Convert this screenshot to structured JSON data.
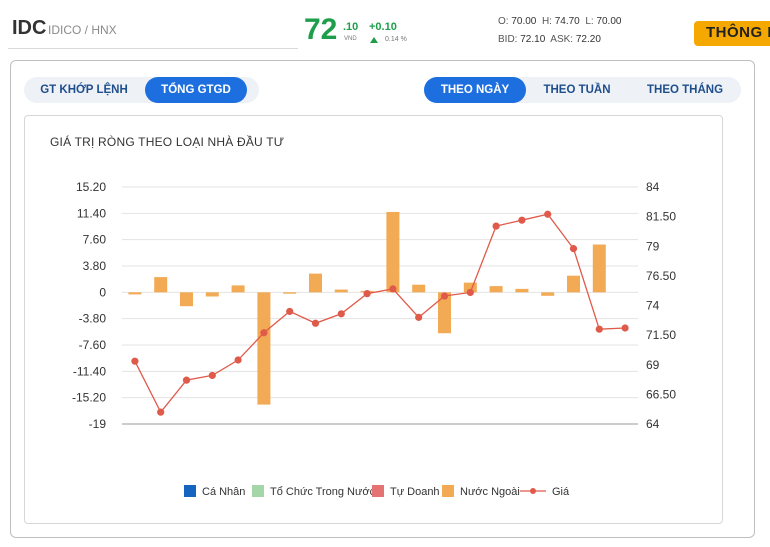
{
  "header": {
    "ticker": "IDC",
    "company": "IDICO / HNX",
    "price_int": "72",
    "price_dec": ".10",
    "price_unit": "VND",
    "change": "+0.10",
    "change_pct": "0.14 %",
    "open_label": "O:",
    "open": "70.00",
    "high_label": "H:",
    "high": "74.70",
    "low_label": "L:",
    "low": "70.00",
    "bid_label": "BID:",
    "bid": "72.10",
    "ask_label": "ASK:",
    "ask": "72.20",
    "info_button": "THÔNG BÁO",
    "colors": {
      "up": "#1e9e4a",
      "info": "#f5a800"
    }
  },
  "tabs_left": [
    {
      "label": "GT KHỚP LỆNH",
      "active": false
    },
    {
      "label": "TỔNG GTGD",
      "active": true
    }
  ],
  "tabs_right": [
    {
      "label": "THEO NGÀY",
      "active": true
    },
    {
      "label": "THEO TUẦN",
      "active": false
    },
    {
      "label": "THEO THÁNG",
      "active": false
    }
  ],
  "chart_data": {
    "type": "bar",
    "title": "GIÁ TRỊ RÒNG THEO LOẠI NHÀ ĐẦU TƯ",
    "y_left_ticks": [
      "15.20",
      "11.40",
      "7.60",
      "3.80",
      "0",
      "-3.80",
      "-7.60",
      "-11.40",
      "-15.20",
      "-19"
    ],
    "y_left_range": [
      -19,
      15.2
    ],
    "y_right_ticks": [
      "84",
      "81.50",
      "79",
      "76.50",
      "74",
      "71.50",
      "69",
      "66.50",
      "64"
    ],
    "y_right_range": [
      64,
      84
    ],
    "grid": true,
    "legend_position": "bottom",
    "series": [
      {
        "name": "Cá Nhân",
        "color": "#1565c0",
        "type": "bar",
        "values": [
          0,
          0,
          0,
          0,
          0,
          0,
          0,
          0,
          0,
          0,
          0,
          0,
          0,
          0,
          0,
          0,
          0,
          0,
          0,
          0
        ]
      },
      {
        "name": "Tổ Chức Trong Nước",
        "color": "#a5d6a7",
        "type": "bar",
        "values": [
          0,
          0,
          0,
          0,
          0,
          0,
          0,
          0,
          0,
          0,
          0,
          0,
          0,
          0,
          0,
          0,
          0,
          0,
          0,
          0
        ]
      },
      {
        "name": "Tự Doanh",
        "color": "#e57373",
        "type": "bar",
        "values": [
          0,
          0,
          0,
          0,
          0,
          0,
          0,
          0,
          0,
          0,
          0,
          0,
          0,
          0,
          0,
          0,
          0,
          0,
          0,
          0
        ]
      },
      {
        "name": "Nước Ngoài",
        "color": "#f2aa55",
        "type": "bar",
        "values": [
          -0.3,
          2.2,
          -2.0,
          -0.6,
          1.0,
          -16.2,
          -0.2,
          2.7,
          0.4,
          0.2,
          11.6,
          1.1,
          -5.9,
          1.4,
          0.9,
          0.5,
          -0.5,
          2.4,
          6.9,
          0
        ]
      },
      {
        "name": "Giá",
        "color": "#e05a4a",
        "type": "line",
        "axis": "right",
        "values": [
          69.3,
          65.0,
          67.7,
          68.1,
          69.4,
          71.7,
          73.5,
          72.5,
          73.3,
          75.0,
          75.4,
          73.0,
          74.8,
          75.1,
          80.7,
          81.2,
          81.7,
          78.8,
          72.0,
          72.1
        ]
      }
    ]
  }
}
